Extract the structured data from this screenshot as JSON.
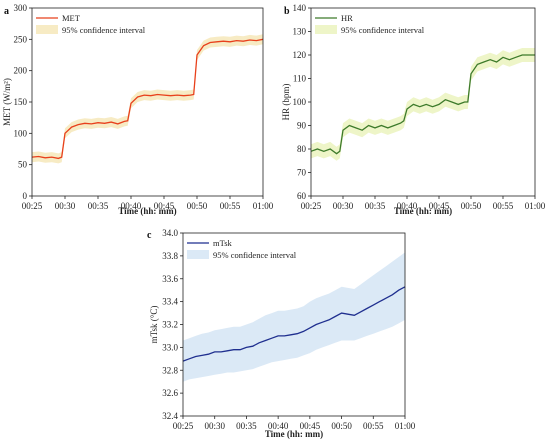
{
  "chart_data": [
    {
      "panel_label": "a",
      "type": "line",
      "xlabel": "Time (hh: mm)",
      "ylabel": "MET (W/m²)",
      "xlim": [
        "00:25",
        "01:00"
      ],
      "ylim": [
        0,
        300
      ],
      "xticks": [
        "00:25",
        "00:30",
        "00:35",
        "00:40",
        "00:45",
        "00:50",
        "00:55",
        "01:00"
      ],
      "yticks": [
        0,
        50,
        100,
        150,
        200,
        250,
        300
      ],
      "legend": {
        "position": "top-left",
        "entries": [
          "MET",
          "95% confidence interval"
        ]
      },
      "colors": {
        "line": "#e8401c",
        "band": "#f7ebc4"
      },
      "band_halfwidth": 8,
      "series": [
        {
          "name": "MET",
          "x": [
            "00:25",
            "00:26",
            "00:27",
            "00:28",
            "00:29",
            "00:29:30",
            "00:30",
            "00:31",
            "00:32",
            "00:33",
            "00:34",
            "00:35",
            "00:36",
            "00:37",
            "00:38",
            "00:39",
            "00:39:30",
            "00:40",
            "00:41",
            "00:42",
            "00:43",
            "00:44",
            "00:45",
            "00:46",
            "00:47",
            "00:48",
            "00:49",
            "00:49:30",
            "00:50",
            "00:51",
            "00:52",
            "00:53",
            "00:54",
            "00:55",
            "00:56",
            "00:57",
            "00:58",
            "00:59",
            "01:00"
          ],
          "values": [
            62,
            63,
            61,
            62,
            60,
            62,
            100,
            110,
            114,
            116,
            115,
            117,
            116,
            118,
            115,
            119,
            120,
            148,
            158,
            161,
            160,
            162,
            161,
            160,
            161,
            160,
            161,
            162,
            225,
            240,
            245,
            246,
            247,
            246,
            248,
            247,
            249,
            248,
            250
          ]
        }
      ]
    },
    {
      "panel_label": "b",
      "type": "line",
      "xlabel": "Time (hh: mm)",
      "ylabel": "HR (bpm)",
      "xlim": [
        "00:25",
        "01:00"
      ],
      "ylim": [
        60,
        140
      ],
      "xticks": [
        "00:25",
        "00:30",
        "00:35",
        "00:40",
        "00:45",
        "00:50",
        "00:55",
        "01:00"
      ],
      "yticks": [
        60,
        70,
        80,
        90,
        100,
        110,
        120,
        130,
        140
      ],
      "legend": {
        "position": "top-left",
        "entries": [
          "HR",
          "95% confidence interval"
        ]
      },
      "colors": {
        "line": "#3d7a2a",
        "band": "#eef5c8"
      },
      "band_halfwidth": 3,
      "series": [
        {
          "name": "HR",
          "x": [
            "00:25",
            "00:26",
            "00:27",
            "00:28",
            "00:29",
            "00:29:30",
            "00:30",
            "00:31",
            "00:32",
            "00:33",
            "00:34",
            "00:35",
            "00:36",
            "00:37",
            "00:38",
            "00:39",
            "00:39:30",
            "00:40",
            "00:41",
            "00:42",
            "00:43",
            "00:44",
            "00:45",
            "00:46",
            "00:47",
            "00:48",
            "00:49",
            "00:49:30",
            "00:50",
            "00:51",
            "00:52",
            "00:53",
            "00:54",
            "00:55",
            "00:56",
            "00:57",
            "00:58",
            "00:59",
            "01:00"
          ],
          "values": [
            79,
            80,
            79,
            80,
            78,
            79,
            88,
            90,
            89,
            88,
            90,
            89,
            90,
            89,
            90,
            91,
            92,
            97,
            99,
            98,
            99,
            98,
            99,
            101,
            100,
            99,
            100,
            100,
            112,
            116,
            117,
            118,
            117,
            119,
            118,
            119,
            120,
            120,
            120
          ]
        }
      ]
    },
    {
      "panel_label": "c",
      "type": "line",
      "xlabel": "Time (hh: mm)",
      "ylabel": "mTsk (°C)",
      "xlim": [
        "00:25",
        "01:00"
      ],
      "ylim": [
        32.4,
        34.0
      ],
      "xticks": [
        "00:25",
        "00:30",
        "00:35",
        "00:40",
        "00:45",
        "00:50",
        "00:55",
        "01:00"
      ],
      "yticks": [
        "32.4",
        "32.6",
        "32.8",
        "33.0",
        "33.2",
        "33.4",
        "33.6",
        "33.8",
        "34.0"
      ],
      "legend": {
        "position": "top-left",
        "entries": [
          "mTsk",
          "95% confidence interval"
        ]
      },
      "colors": {
        "line": "#1f2f8f",
        "band": "#dbe9f6"
      },
      "series": [
        {
          "name": "mTsk",
          "x": [
            "00:25",
            "00:26",
            "00:27",
            "00:28",
            "00:29",
            "00:30",
            "00:31",
            "00:32",
            "00:33",
            "00:34",
            "00:35",
            "00:36",
            "00:37",
            "00:38",
            "00:39",
            "00:40",
            "00:41",
            "00:42",
            "00:43",
            "00:44",
            "00:45",
            "00:46",
            "00:47",
            "00:48",
            "00:49",
            "00:50",
            "00:51",
            "00:52",
            "00:53",
            "00:54",
            "00:55",
            "00:56",
            "00:57",
            "00:58",
            "00:59",
            "01:00"
          ],
          "values": [
            32.88,
            32.9,
            32.92,
            32.93,
            32.94,
            32.96,
            32.96,
            32.97,
            32.98,
            32.98,
            33.0,
            33.01,
            33.04,
            33.06,
            33.08,
            33.1,
            33.1,
            33.11,
            33.12,
            33.14,
            33.17,
            33.2,
            33.22,
            33.24,
            33.27,
            33.3,
            33.29,
            33.28,
            33.31,
            33.34,
            33.37,
            33.4,
            33.43,
            33.46,
            33.5,
            33.53
          ],
          "lower": [
            32.7,
            32.72,
            32.73,
            32.74,
            32.75,
            32.76,
            32.77,
            32.78,
            32.78,
            32.79,
            32.8,
            32.81,
            32.83,
            32.85,
            32.87,
            32.88,
            32.89,
            32.9,
            32.91,
            32.93,
            32.95,
            32.98,
            33.0,
            33.02,
            33.04,
            33.06,
            33.06,
            33.06,
            33.08,
            33.1,
            33.12,
            33.14,
            33.16,
            33.18,
            33.21,
            33.24
          ],
          "upper": [
            33.06,
            33.08,
            33.1,
            33.12,
            33.13,
            33.15,
            33.16,
            33.17,
            33.18,
            33.18,
            33.2,
            33.22,
            33.25,
            33.28,
            33.3,
            33.32,
            33.32,
            33.33,
            33.34,
            33.36,
            33.4,
            33.43,
            33.45,
            33.47,
            33.5,
            33.53,
            33.52,
            33.51,
            33.55,
            33.59,
            33.63,
            33.67,
            33.71,
            33.75,
            33.79,
            33.83
          ]
        }
      ]
    }
  ]
}
